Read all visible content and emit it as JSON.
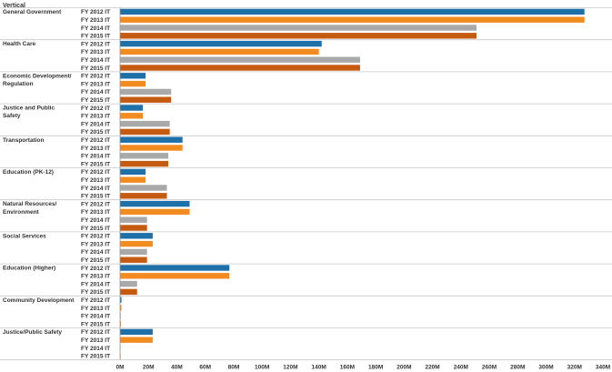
{
  "chart_data": {
    "type": "bar",
    "orientation": "horizontal",
    "column_header": "Vertical",
    "series": [
      {
        "name": "FY 2012 IT",
        "color": "#1f6fa8"
      },
      {
        "name": "FY 2013 IT",
        "color": "#f28c20"
      },
      {
        "name": "FY 2014 IT",
        "color": "#a9a9a9"
      },
      {
        "name": "FY 2015 IT",
        "color": "#c55a11"
      }
    ],
    "categories": [
      {
        "name": "General Government",
        "values": [
          327,
          327,
          251,
          251
        ]
      },
      {
        "name": "Health Care",
        "values": [
          142,
          140,
          169,
          169
        ]
      },
      {
        "name": "Economic Development/Regulation",
        "values": [
          18,
          18,
          36,
          36
        ]
      },
      {
        "name": "Justice and Public Safety",
        "values": [
          16,
          16,
          35,
          35
        ]
      },
      {
        "name": "Transportation",
        "values": [
          44,
          44,
          34,
          34
        ]
      },
      {
        "name": "Education (PK-12)",
        "values": [
          18,
          18,
          33,
          33
        ]
      },
      {
        "name": "Natural Resources/Environment",
        "values": [
          49,
          49,
          19,
          19
        ]
      },
      {
        "name": "Social Services",
        "values": [
          23,
          23,
          19,
          19
        ]
      },
      {
        "name": "Education (Higher)",
        "values": [
          77,
          77,
          12,
          12
        ]
      },
      {
        "name": "Community Development",
        "values": [
          1,
          1,
          0.5,
          0.5
        ]
      },
      {
        "name": "Justice/Public Safety",
        "values": [
          23,
          23,
          0.3,
          0.3
        ]
      }
    ],
    "xlim": [
      0,
      340
    ],
    "x_unit": "M",
    "x_ticks": [
      "0M",
      "20M",
      "40M",
      "60M",
      "80M",
      "100M",
      "120M",
      "140M",
      "160M",
      "180M",
      "200M",
      "220M",
      "240M",
      "260M",
      "280M",
      "300M",
      "320M",
      "340M"
    ],
    "x_tick_values": [
      0,
      20,
      40,
      60,
      80,
      100,
      120,
      140,
      160,
      180,
      200,
      220,
      240,
      260,
      280,
      300,
      320,
      340
    ],
    "legend": "none",
    "grid": false
  }
}
